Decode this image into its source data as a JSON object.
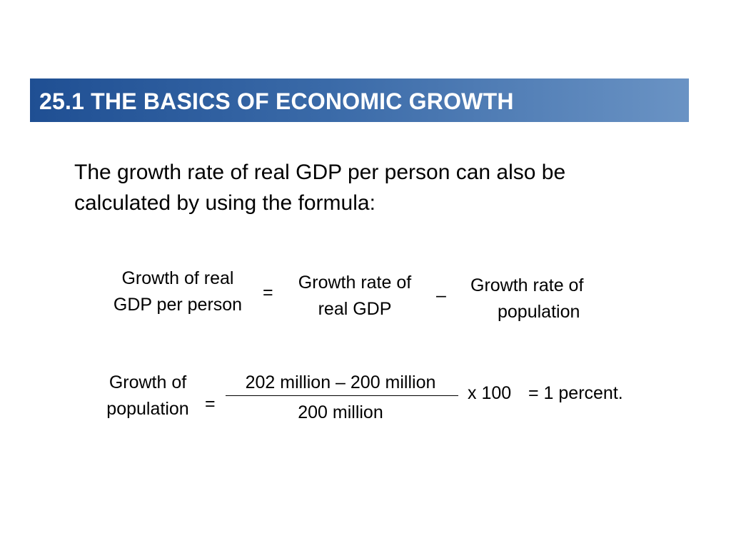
{
  "slide": {
    "title": "25.1 THE BASICS OF ECONOMIC GROWTH",
    "intro": "The growth rate of real GDP per person can also be calculated by using the formula:"
  },
  "formula1": {
    "lhs_line1": "Growth of real",
    "lhs_line2": "GDP per person",
    "equals": "=",
    "term1_line1": "Growth rate of",
    "term1_line2": "real GDP",
    "minus": "–",
    "term2_line1": "Growth rate of",
    "term2_line2": "population"
  },
  "formula2": {
    "lhs_line1": "Growth of",
    "lhs_line2": "population",
    "equals": "=",
    "numerator": "202 million – 200 million",
    "denominator": "200 million",
    "multiplier": "x 100",
    "result": "= 1 percent."
  },
  "colors": {
    "banner_start": "#1f4f93",
    "banner_end": "#6a93c4",
    "title_text": "#ffffff"
  }
}
